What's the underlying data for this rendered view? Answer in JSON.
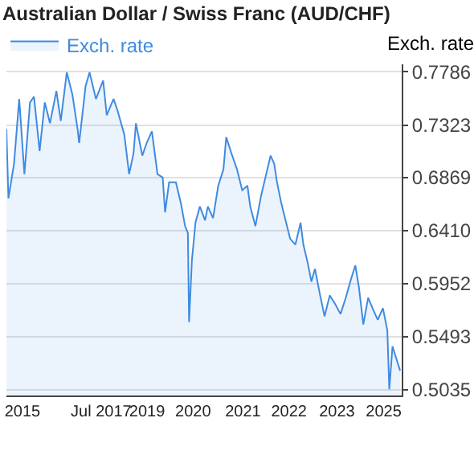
{
  "chart_data": {
    "type": "area",
    "title": "Australian Dollar / Swiss Franc (AUD/CHF)",
    "ylabel": "Exch. rate",
    "x": [
      2015.08,
      2015.13,
      2015.27,
      2015.4,
      2015.53,
      2015.67,
      2015.77,
      2015.91,
      2016.04,
      2016.17,
      2016.33,
      2016.44,
      2016.59,
      2016.73,
      2016.86,
      2016.9,
      2017.06,
      2017.16,
      2017.32,
      2017.5,
      2017.59,
      2017.76,
      2017.86,
      2018.03,
      2018.15,
      2018.26,
      2018.32,
      2018.48,
      2018.59,
      2018.72,
      2018.86,
      2018.99,
      2019.05,
      2019.15,
      2019.32,
      2019.45,
      2019.55,
      2019.62,
      2019.65,
      2019.72,
      2019.81,
      2019.92,
      2020.05,
      2020.12,
      2020.25,
      2020.38,
      2020.51,
      2020.58,
      2020.71,
      2020.85,
      2020.98,
      2021.11,
      2021.18,
      2021.31,
      2021.45,
      2021.58,
      2021.69,
      2021.78,
      2021.85,
      2021.95,
      2022.05,
      2022.18,
      2022.31,
      2022.44,
      2022.51,
      2022.62,
      2022.71,
      2022.8,
      2022.93,
      2023.04,
      2023.17,
      2023.3,
      2023.44,
      2023.57,
      2023.7,
      2023.81,
      2023.9,
      2024.01,
      2024.13,
      2024.24,
      2024.37,
      2024.5,
      2024.61,
      2024.66,
      2024.74,
      2024.84,
      2024.93
    ],
    "series": [
      {
        "name": "Exch. rate",
        "color": "#3f8be0",
        "values": [
          0.729,
          0.669,
          0.699,
          0.755,
          0.69,
          0.752,
          0.757,
          0.71,
          0.752,
          0.734,
          0.762,
          0.736,
          0.778,
          0.759,
          0.729,
          0.717,
          0.766,
          0.778,
          0.755,
          0.771,
          0.741,
          0.755,
          0.745,
          0.724,
          0.69,
          0.708,
          0.734,
          0.706,
          0.717,
          0.727,
          0.69,
          0.687,
          0.657,
          0.683,
          0.683,
          0.664,
          0.645,
          0.639,
          0.562,
          0.615,
          0.648,
          0.662,
          0.65,
          0.662,
          0.652,
          0.68,
          0.694,
          0.722,
          0.708,
          0.694,
          0.676,
          0.68,
          0.662,
          0.645,
          0.671,
          0.69,
          0.706,
          0.699,
          0.683,
          0.666,
          0.652,
          0.634,
          0.629,
          0.648,
          0.629,
          0.613,
          0.597,
          0.608,
          0.585,
          0.567,
          0.585,
          0.578,
          0.569,
          0.583,
          0.599,
          0.611,
          0.592,
          0.56,
          0.583,
          0.574,
          0.564,
          0.574,
          0.555,
          0.504,
          0.541,
          0.53,
          0.52
        ]
      }
    ],
    "xlim": [
      2015.08,
      2024.97
    ],
    "xticks": [
      {
        "value": 2015.48,
        "label": "2015"
      },
      {
        "value": 2017.45,
        "label": "Jul 2017"
      },
      {
        "value": 2018.6,
        "label": "2019"
      },
      {
        "value": 2019.75,
        "label": "2020"
      },
      {
        "value": 2021.0,
        "label": "2021"
      },
      {
        "value": 2022.15,
        "label": "2022"
      },
      {
        "value": 2023.35,
        "label": "2023"
      },
      {
        "value": 2024.52,
        "label": "2025"
      }
    ],
    "ylim": [
      0.4985,
      0.785
    ],
    "yticks": [
      0.7786,
      0.7323,
      0.6869,
      {
        "value": 0.641,
        "label": "0.6410"
      },
      0.5952,
      0.5493,
      0.5035
    ],
    "grid": "y",
    "legend": "top left",
    "marker": "none",
    "line_style": "solid"
  }
}
